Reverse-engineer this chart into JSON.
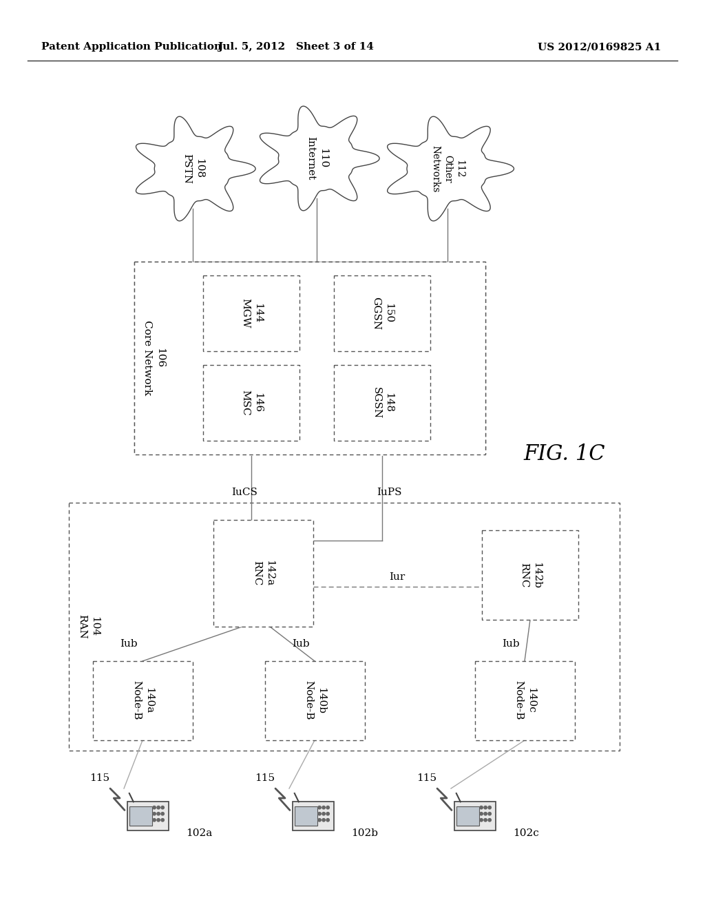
{
  "background_color": "#ffffff",
  "header_left": "Patent Application Publication",
  "header_mid": "Jul. 5, 2012   Sheet 3 of 14",
  "header_right": "US 2012/0169825 A1",
  "fig_label": "FIG. 1C"
}
